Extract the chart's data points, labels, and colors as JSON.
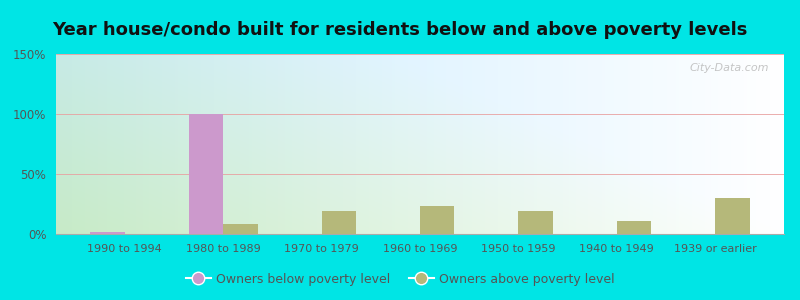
{
  "title": "Year house/condo built for residents below and above poverty levels",
  "categories": [
    "1990 to 1994",
    "1980 to 1989",
    "1970 to 1979",
    "1960 to 1969",
    "1950 to 1959",
    "1940 to 1949",
    "1939 or earlier"
  ],
  "below_poverty": [
    2,
    100,
    0,
    0,
    0,
    0,
    0
  ],
  "above_poverty": [
    0,
    8,
    19,
    23,
    19,
    11,
    30
  ],
  "below_color": "#cc99cc",
  "above_color": "#b5b87a",
  "ylim": [
    0,
    150
  ],
  "yticks": [
    0,
    50,
    100,
    150
  ],
  "ytick_labels": [
    "0%",
    "50%",
    "100%",
    "150%"
  ],
  "outer_background": "#00e5e5",
  "bar_width": 0.35,
  "legend_below": "Owners below poverty level",
  "legend_above": "Owners above poverty level",
  "title_fontsize": 13,
  "watermark": "City-Data.com"
}
